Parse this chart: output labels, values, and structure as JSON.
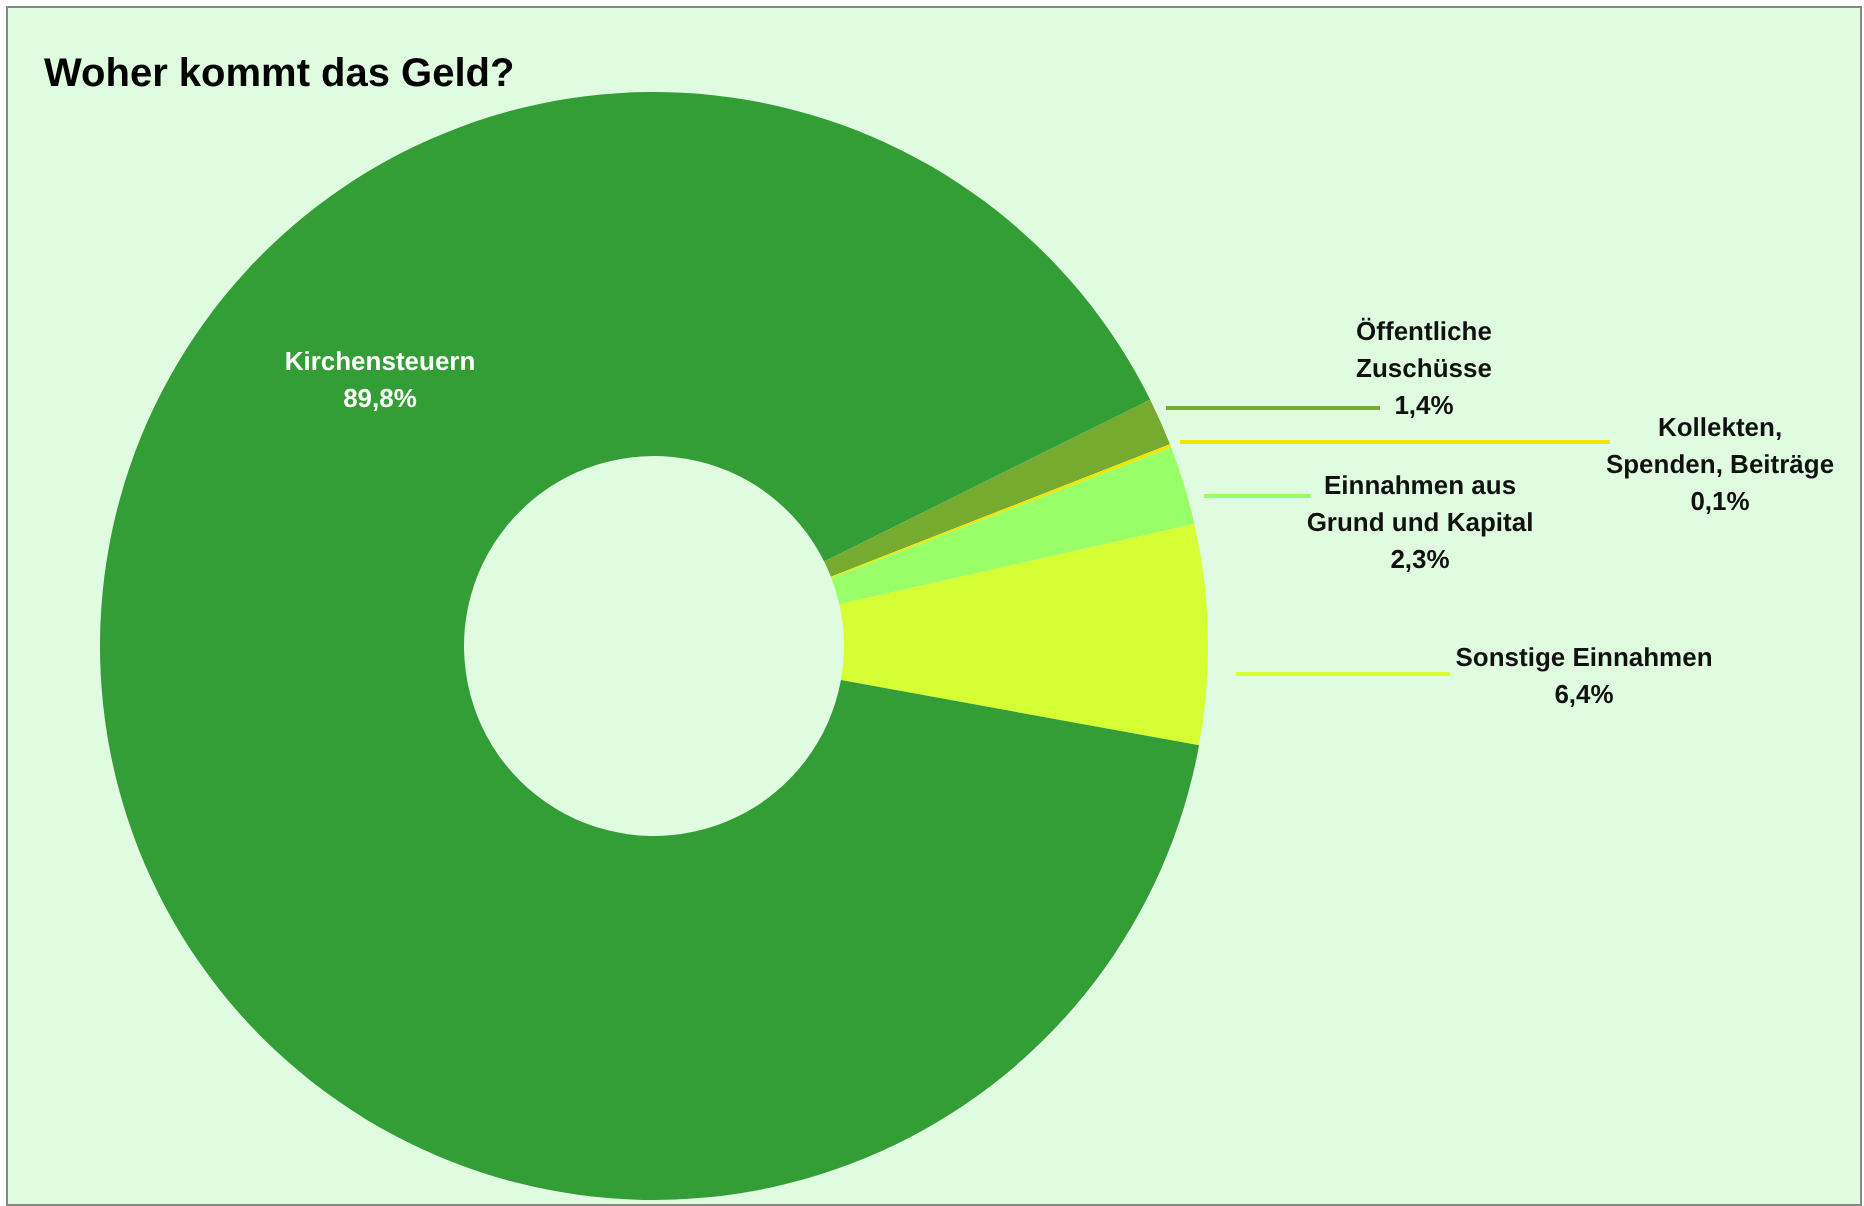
{
  "chart_data": {
    "type": "donut",
    "title": "Woher kommt das Geld?",
    "categories": [
      "Öffentliche Zuschüsse",
      "Kollekten, Spenden, Beiträge",
      "Einnahmen aus Grund und Kapital",
      "Sonstige Einnahmen",
      "Kirchensteuern"
    ],
    "values": [
      1.4,
      0.1,
      2.3,
      6.4,
      89.8
    ],
    "colors": [
      "#77ab2f",
      "#f2e600",
      "#99ff66",
      "#d6ff33",
      "#339e36"
    ],
    "value_labels": [
      "1,4%",
      "0,1%",
      "2,3%",
      "6,4%",
      "89,8%"
    ]
  }
}
